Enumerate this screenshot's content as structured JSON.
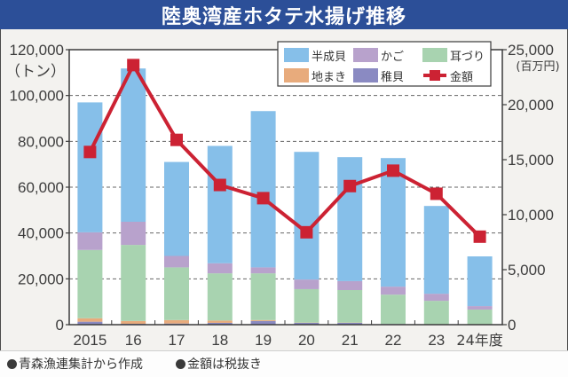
{
  "title": "陸奥湾産ホタテ水揚げ推移",
  "chart_data": {
    "type": "bar",
    "subtype": "stacked-bar-with-line",
    "title": "陸奥湾産ホタテ水揚げ推移",
    "categories": [
      "2015",
      "16",
      "17",
      "18",
      "19",
      "20",
      "21",
      "22",
      "23",
      "24年度"
    ],
    "left_axis": {
      "unit_label": "（トン）",
      "ylim": [
        0,
        120000
      ],
      "ticks": [
        "0",
        "20,000",
        "40,000",
        "60,000",
        "80,000",
        "100,000",
        "120,000"
      ],
      "tick_values": [
        0,
        20000,
        40000,
        60000,
        80000,
        100000,
        120000
      ]
    },
    "right_axis": {
      "unit_label": "(百万円)",
      "ylim": [
        0,
        25000
      ],
      "ticks": [
        "0",
        "5,000",
        "10,000",
        "15,000",
        "20,000",
        "25,000"
      ],
      "tick_values": [
        0,
        5000,
        10000,
        15000,
        20000,
        25000
      ]
    },
    "grid": "dashed-horizontal",
    "legend_position": "top-right",
    "series": [
      {
        "name": "稚貝",
        "kind": "bar",
        "color": "#8a8ac2",
        "values": [
          1300,
          400,
          500,
          800,
          1600,
          800,
          800,
          300,
          200,
          100
        ]
      },
      {
        "name": "地まき",
        "kind": "bar",
        "color": "#e8ab7c",
        "values": [
          1500,
          1200,
          1500,
          1000,
          400,
          100,
          100,
          0,
          0,
          0
        ]
      },
      {
        "name": "耳づり",
        "kind": "bar",
        "color": "#a8d3b0",
        "values": [
          29800,
          33200,
          23000,
          20600,
          20400,
          14600,
          14200,
          12800,
          10200,
          6500
        ]
      },
      {
        "name": "かご",
        "kind": "bar",
        "color": "#b8a2cc",
        "values": [
          7700,
          10100,
          5000,
          4400,
          2600,
          4200,
          3900,
          3500,
          3100,
          1500
        ]
      },
      {
        "name": "半成貝",
        "kind": "bar",
        "color": "#86bfe9",
        "values": [
          56700,
          66900,
          41000,
          51200,
          68200,
          55700,
          54100,
          56100,
          38300,
          21700
        ]
      },
      {
        "name": "金額",
        "kind": "line",
        "axis": "right",
        "color": "#cc2233",
        "values": [
          15700,
          23600,
          16800,
          12700,
          11500,
          8400,
          12600,
          14000,
          11900,
          8000
        ]
      }
    ],
    "legend": [
      "半成貝",
      "かご",
      "耳づり",
      "地まき",
      "稚貝",
      "金額"
    ]
  },
  "footer": {
    "notes": [
      "青森漁連集計から作成",
      "金額は税抜き"
    ]
  }
}
